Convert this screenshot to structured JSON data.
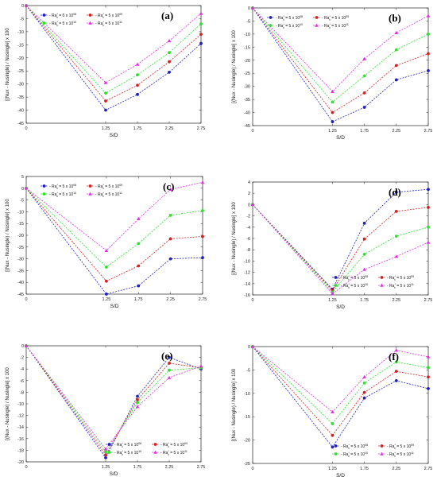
{
  "figure": {
    "series_names": [
      "Ra*x = 5 x 10^08",
      "Ra*x = 5 x 10^09",
      "Ra*x = 5 x 10^10",
      "Ra*x = 5 x 10^11"
    ],
    "colors": [
      "#1f1fbf",
      "#d42020",
      "#2ee02e",
      "#e02ee0"
    ]
  },
  "chart_data": [
    {
      "type": "line",
      "label": "(a)",
      "xlabel": "S/D",
      "ylabel": "[(Nux - Nusingle) / Nusingle] x 100",
      "xlim": [
        0,
        2.75
      ],
      "ylim": [
        -45,
        0
      ],
      "x": [
        0,
        1.25,
        1.75,
        2.25,
        2.75
      ],
      "xticks": [
        "0",
        "1.25",
        "1.75",
        "2.25",
        "2.75"
      ],
      "yticks": [
        -45,
        -40,
        -35,
        -30,
        -25,
        -20,
        -15,
        -10,
        -5,
        0
      ],
      "legend_position": "top",
      "series": [
        {
          "name": "Ra*x = 5 x 10^08",
          "values": [
            0,
            -40,
            -34,
            -25.5,
            -14.5
          ]
        },
        {
          "name": "Ra*x = 5 x 10^09",
          "values": [
            0,
            -36.5,
            -30.5,
            -21.5,
            -11
          ]
        },
        {
          "name": "Ra*x = 5 x 10^10",
          "values": [
            0,
            -33.5,
            -26.5,
            -18,
            -7
          ]
        },
        {
          "name": "Ra*x = 5 x 10^11",
          "values": [
            0,
            -29.5,
            -22.5,
            -13.5,
            -3
          ]
        }
      ]
    },
    {
      "type": "line",
      "label": "(b)",
      "xlabel": "S/D",
      "ylabel": "[(Nux - Nusingle) / Nusingle] x 100",
      "xlim": [
        0,
        2.75
      ],
      "ylim": [
        -45,
        0
      ],
      "x": [
        0,
        1.25,
        1.75,
        2.25,
        2.75
      ],
      "xticks": [
        "0",
        "1.25",
        "1.75",
        "2.25",
        "2.75"
      ],
      "yticks": [
        -45,
        -40,
        -35,
        -30,
        -25,
        -20,
        -15,
        -10,
        -5,
        0
      ],
      "legend_position": "top",
      "series": [
        {
          "name": "Ra*x = 5 x 10^08",
          "values": [
            0,
            -43.5,
            -38,
            -27.5,
            -24
          ]
        },
        {
          "name": "Ra*x = 5 x 10^09",
          "values": [
            0,
            -40,
            -32.5,
            -22,
            -17.5
          ]
        },
        {
          "name": "Ra*x = 5 x 10^10",
          "values": [
            0,
            -36,
            -26,
            -16,
            -10
          ]
        },
        {
          "name": "Ra*x = 5 x 10^11",
          "values": [
            0,
            -32,
            -19.5,
            -9.5,
            -3
          ]
        }
      ]
    },
    {
      "type": "line",
      "label": "(c)",
      "xlabel": "S/D",
      "ylabel": "[(Nux - Nusingle) / Nusingle] x 100",
      "xlim": [
        0,
        2.75
      ],
      "ylim": [
        -45,
        5
      ],
      "x": [
        0,
        1.25,
        1.75,
        2.25,
        2.75
      ],
      "xticks": [
        "0",
        "1.25",
        "1.75",
        "2.25",
        "2.75"
      ],
      "yticks": [
        -45,
        -40,
        -35,
        -30,
        -25,
        -20,
        -15,
        -10,
        -5,
        0,
        5
      ],
      "legend_position": "top",
      "series": [
        {
          "name": "Ra*x = 5 x 10^08",
          "values": [
            0,
            -45,
            -41.5,
            -30,
            -29.5
          ]
        },
        {
          "name": "Ra*x = 5 x 10^09",
          "values": [
            0,
            -39.5,
            -33,
            -21.5,
            -20.5
          ]
        },
        {
          "name": "Ra*x = 5 x 10^10",
          "values": [
            0,
            -33.5,
            -23.5,
            -11.5,
            -9.5
          ]
        },
        {
          "name": "Ra*x = 5 x 10^11",
          "values": [
            0,
            -26.5,
            -13,
            -0.5,
            2.5
          ]
        }
      ]
    },
    {
      "type": "line",
      "label": "(d)",
      "xlabel": "S/D",
      "ylabel": "[(Nux - Nusingle) / Nusingle] x 100",
      "xlim": [
        0,
        2.75
      ],
      "ylim": [
        -16,
        4
      ],
      "x": [
        0,
        1.25,
        1.75,
        2.25,
        2.75
      ],
      "xticks": [
        "0",
        "1.25",
        "1.75",
        "2.25",
        "2.75"
      ],
      "yticks": [
        -16,
        -14,
        -12,
        -10,
        -8,
        -6,
        -4,
        -2,
        0,
        2,
        4
      ],
      "legend_position": "bottom-right",
      "series": [
        {
          "name": "Ra*x = 5 x 10^08",
          "values": [
            0,
            -15,
            -3.3,
            2.2,
            2.7
          ]
        },
        {
          "name": "Ra*x = 5 x 10^09",
          "values": [
            0,
            -15.2,
            -6.1,
            -1.2,
            -0.5
          ]
        },
        {
          "name": "Ra*x = 5 x 10^10",
          "values": [
            0,
            -15.5,
            -8.8,
            -5.6,
            -4.0
          ]
        },
        {
          "name": "Ra*x = 5 x 10^11",
          "values": [
            0,
            -15.8,
            -11.5,
            -9.2,
            -6.7
          ]
        }
      ]
    },
    {
      "type": "line",
      "label": "(e)",
      "xlabel": "S/D",
      "ylabel": "[(Nux - Nusingle) / Nusingle] x 100",
      "xlim": [
        0,
        2.75
      ],
      "ylim": [
        -20,
        0
      ],
      "x": [
        0,
        1.25,
        1.75,
        2.25,
        2.75
      ],
      "xticks": [
        "0",
        "1.25",
        "1.75",
        "2.25",
        "2.75"
      ],
      "yticks": [
        -20,
        -18,
        -16,
        -14,
        -12,
        -10,
        -8,
        -6,
        -4,
        -2,
        0
      ],
      "legend_position": "bottom-right",
      "series": [
        {
          "name": "Ra*x = 5 x 10^08",
          "values": [
            0,
            -19.3,
            -8.7,
            -2.0,
            -4.0
          ]
        },
        {
          "name": "Ra*x = 5 x 10^09",
          "values": [
            0,
            -18.8,
            -9.3,
            -3.0,
            -3.8
          ]
        },
        {
          "name": "Ra*x = 5 x 10^10",
          "values": [
            0,
            -18.3,
            -9.8,
            -4.2,
            -3.8
          ]
        },
        {
          "name": "Ra*x = 5 x 10^11",
          "values": [
            0,
            -17.8,
            -10.5,
            -5.5,
            -3.5
          ]
        }
      ]
    },
    {
      "type": "line",
      "label": "(f)",
      "xlabel": "S/D",
      "ylabel": "[(Nux - Nusingle) / Nusingle] x 100",
      "xlim": [
        0,
        2.75
      ],
      "ylim": [
        -25,
        0
      ],
      "x": [
        0,
        1.25,
        1.75,
        2.25,
        2.75
      ],
      "xticks": [
        "0",
        "1.25",
        "1.75",
        "2.25",
        "2.75"
      ],
      "yticks": [
        -25,
        -20,
        -15,
        -10,
        -5,
        0
      ],
      "legend_position": "bottom-right",
      "series": [
        {
          "name": "Ra*x = 5 x 10^08",
          "values": [
            0,
            -21.5,
            -11,
            -7.3,
            -9
          ]
        },
        {
          "name": "Ra*x = 5 x 10^09",
          "values": [
            0,
            -19,
            -9.8,
            -5.3,
            -6.5
          ]
        },
        {
          "name": "Ra*x = 5 x 10^10",
          "values": [
            0,
            -16.5,
            -7.8,
            -3.3,
            -4.5
          ]
        },
        {
          "name": "Ra*x = 5 x 10^11",
          "values": [
            0,
            -14,
            -6.5,
            -0.8,
            -2.2
          ]
        }
      ]
    }
  ]
}
